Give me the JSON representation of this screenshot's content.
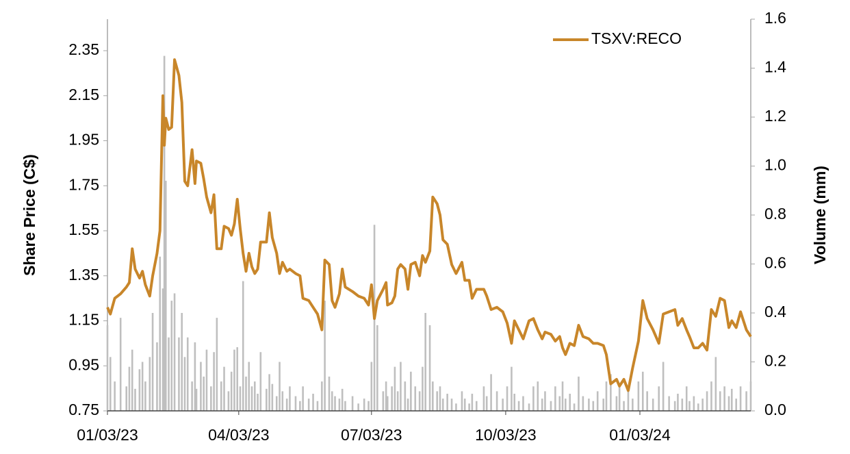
{
  "chart_data": {
    "type": "line",
    "ylabel": "Share Price (C$)",
    "y2label": "Volume (mm)",
    "xlim": [
      "01/03/23",
      "03/19/24"
    ],
    "xticks": [
      "01/03/23",
      "04/03/23",
      "07/03/23",
      "10/03/23",
      "01/03/24"
    ],
    "ylim": [
      0.75,
      2.49
    ],
    "yticks": [
      0.75,
      0.95,
      1.15,
      1.35,
      1.55,
      1.75,
      1.95,
      2.15,
      2.35
    ],
    "y2lim": [
      0,
      1.6
    ],
    "y2ticks": [
      {
        "value": 0,
        "label": "0.0"
      },
      0.2,
      0.4,
      0.6,
      0.8,
      {
        "value": 1,
        "label": "1.0"
      },
      1.2,
      1.4,
      1.6
    ],
    "legend": "upper right",
    "x": [
      "01/03/23",
      "01/05/23",
      "01/08/23",
      "01/12/23",
      "01/16/23",
      "01/18/23",
      "01/20/23",
      "01/22/23",
      "01/25/23",
      "01/27/23",
      "01/29/23",
      "02/01/23",
      "02/03/23",
      "02/06/23",
      "02/08/23",
      "02/10/23",
      "02/11/23",
      "02/12/23",
      "02/14/23",
      "02/16/23",
      "02/18/23",
      "02/21/23",
      "02/23/23",
      "02/25/23",
      "02/27/23",
      "03/02/23",
      "03/04/23",
      "03/05/23",
      "03/08/23",
      "03/10/23",
      "03/12/23",
      "03/15/23",
      "03/17/23",
      "03/19/23",
      "03/22/23",
      "03/24/23",
      "03/27/23",
      "03/29/23",
      "03/31/23",
      "04/02/23",
      "04/04/23",
      "04/06/23",
      "04/08/23",
      "04/10/23",
      "04/12/23",
      "04/14/23",
      "04/16/23",
      "04/18/23",
      "04/22/23",
      "04/24/23",
      "04/26/23",
      "04/29/23",
      "05/01/23",
      "05/03/23",
      "05/06/23",
      "05/08/23",
      "05/12/23",
      "05/15/23",
      "05/17/23",
      "05/21/23",
      "05/24/23",
      "05/27/23",
      "05/30/23",
      "06/01/23",
      "06/04/23",
      "06/06/23",
      "06/08/23",
      "06/11/23",
      "06/13/23",
      "06/15/23",
      "06/20/23",
      "06/24/23",
      "06/28/23",
      "07/01/23",
      "07/03/23",
      "07/05/23",
      "07/07/23",
      "07/11/23",
      "07/13/23",
      "07/14/23",
      "07/17/23",
      "07/19/23",
      "07/21/23",
      "07/23/23",
      "07/26/23",
      "07/28/23",
      "07/30/23",
      "08/02/23",
      "08/05/23",
      "08/07/23",
      "08/09/23",
      "08/12/23",
      "08/14/23",
      "08/17/23",
      "08/19/23",
      "08/21/23",
      "08/24/23",
      "08/27/23",
      "08/30/23",
      "09/03/23",
      "09/05/23",
      "09/08/23",
      "09/10/23",
      "09/13/23",
      "09/18/23",
      "09/20/23",
      "09/23/23",
      "09/27/23",
      "10/01/23",
      "10/04/23",
      "10/07/23",
      "10/09/23",
      "10/12/23",
      "10/15/23",
      "10/19/23",
      "10/22/23",
      "10/25/23",
      "10/28/23",
      "10/30/23",
      "11/03/23",
      "11/06/23",
      "11/09/23",
      "11/11/23",
      "11/13/23",
      "11/16/23",
      "11/19/23",
      "11/22/23",
      "11/25/23",
      "11/29/23",
      "12/02/23",
      "12/05/23",
      "12/09/23",
      "12/11/23",
      "12/14/23",
      "12/18/23",
      "12/20/23",
      "12/23/23",
      "12/26/23",
      "12/29/23",
      "01/02/24",
      "01/05/24",
      "01/08/24",
      "01/12/24",
      "01/16/24",
      "01/19/24",
      "01/23/24",
      "01/27/24",
      "01/29/24",
      "02/01/24",
      "02/04/24",
      "02/06/24",
      "02/09/24",
      "02/12/24",
      "02/15/24",
      "02/18/24",
      "02/21/24",
      "02/24/24",
      "02/27/24",
      "03/01/24",
      "03/04/24",
      "03/06/24",
      "03/09/24",
      "03/12/24",
      "03/16/24",
      "03/19/24"
    ],
    "series": [
      {
        "type": "bar",
        "axis": "y2",
        "color": "#bfbfbf",
        "values": [
          0.35,
          0.22,
          0.12,
          0.38,
          0.1,
          0.18,
          0.25,
          0.09,
          0.17,
          0.2,
          0.12,
          0.22,
          0.4,
          0.28,
          0.63,
          0.5,
          1.45,
          0.94,
          0.3,
          0.45,
          0.48,
          0.3,
          0.4,
          0.22,
          0.3,
          0.12,
          0.28,
          0.09,
          0.2,
          0.14,
          0.25,
          0.1,
          0.24,
          0.38,
          0.12,
          0.18,
          0.08,
          0.16,
          0.25,
          0.26,
          0.1,
          0.53,
          0.14,
          0.2,
          0.1,
          0.12,
          0.07,
          0.24,
          0.09,
          0.15,
          0.11,
          0.06,
          0.2,
          0.08,
          0.05,
          0.1,
          0.06,
          0.04,
          0.1,
          0.05,
          0.07,
          0.04,
          0.12,
          0.45,
          0.14,
          0.08,
          0.06,
          0.05,
          0.09,
          0.04,
          0.06,
          0.03,
          0.05,
          0.04,
          0.2,
          0.76,
          0.35,
          0.08,
          0.12,
          0.06,
          0.1,
          0.18,
          0.08,
          0.2,
          0.12,
          0.05,
          0.16,
          0.1,
          0.08,
          0.18,
          0.4,
          0.35,
          0.12,
          0.08,
          0.1,
          0.05,
          0.07,
          0.05,
          0.03,
          0.08,
          0.05,
          0.03,
          0.07,
          0.04,
          0.1,
          0.06,
          0.15,
          0.08,
          0.05,
          0.1,
          0.18,
          0.07,
          0.04,
          0.06,
          0.03,
          0.1,
          0.12,
          0.05,
          0.08,
          0.04,
          0.1,
          0.06,
          0.12,
          0.05,
          0.07,
          0.03,
          0.14,
          0.06,
          0.05,
          0.04,
          0.08,
          0.05,
          0.12,
          0.15,
          0.06,
          0.1,
          0.04,
          0.08,
          0.05,
          0.12,
          0.16,
          0.08,
          0.05,
          0.1,
          0.2,
          0.06,
          0.04,
          0.07,
          0.05,
          0.1,
          0.04,
          0.06,
          0.03,
          0.05,
          0.08,
          0.12,
          0.22,
          0.08,
          0.1,
          0.06,
          0.09,
          0.05,
          0.1,
          0.08,
          0.12
        ]
      },
      {
        "type": "line",
        "name": "TSXV:RECO",
        "color": "#c8862a",
        "values": [
          1.21,
          1.18,
          1.25,
          1.27,
          1.3,
          1.32,
          1.47,
          1.38,
          1.34,
          1.37,
          1.31,
          1.26,
          1.35,
          1.45,
          1.55,
          2.15,
          1.93,
          2.05,
          2.0,
          2.01,
          2.31,
          2.24,
          2.12,
          1.77,
          1.75,
          1.91,
          1.76,
          1.86,
          1.85,
          1.78,
          1.7,
          1.63,
          1.71,
          1.47,
          1.47,
          1.57,
          1.56,
          1.53,
          1.58,
          1.69,
          1.56,
          1.45,
          1.37,
          1.45,
          1.39,
          1.36,
          1.38,
          1.5,
          1.5,
          1.63,
          1.52,
          1.45,
          1.36,
          1.41,
          1.37,
          1.38,
          1.36,
          1.35,
          1.25,
          1.24,
          1.21,
          1.18,
          1.11,
          1.42,
          1.4,
          1.24,
          1.21,
          1.27,
          1.38,
          1.3,
          1.28,
          1.26,
          1.25,
          1.22,
          1.31,
          1.16,
          1.24,
          1.29,
          1.32,
          1.22,
          1.23,
          1.26,
          1.38,
          1.4,
          1.38,
          1.29,
          1.4,
          1.41,
          1.35,
          1.44,
          1.41,
          1.46,
          1.7,
          1.67,
          1.62,
          1.51,
          1.49,
          1.4,
          1.36,
          1.41,
          1.33,
          1.33,
          1.25,
          1.29,
          1.29,
          1.26,
          1.2,
          1.21,
          1.19,
          1.14,
          1.05,
          1.15,
          1.11,
          1.07,
          1.15,
          1.16,
          1.11,
          1.07,
          1.1,
          1.09,
          1.06,
          1.08,
          1.03,
          1.0,
          1.05,
          1.04,
          1.13,
          1.08,
          1.07,
          1.05,
          1.05,
          1.04,
          1.0,
          0.87,
          0.89,
          0.86,
          0.89,
          0.84,
          0.94,
          1.06,
          1.24,
          1.16,
          1.11,
          1.05,
          1.18,
          1.19,
          1.2,
          1.13,
          1.16,
          1.11,
          1.08,
          1.03,
          1.03,
          1.05,
          1.02,
          1.2,
          1.17,
          1.25,
          1.24,
          1.12,
          1.15,
          1.12,
          1.19,
          1.11,
          1.08
        ]
      }
    ]
  }
}
